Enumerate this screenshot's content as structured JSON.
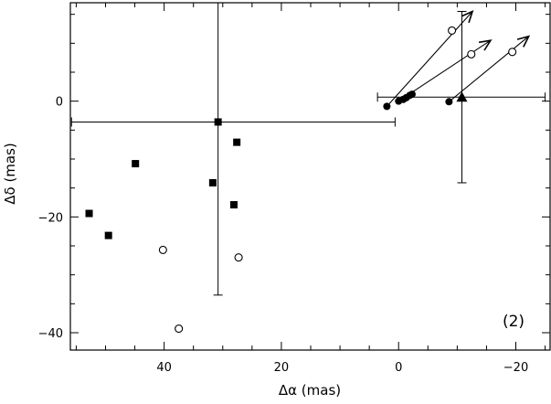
{
  "chart_data": {
    "type": "scatter",
    "xlabel": "Δα  (mas)",
    "ylabel": "Δδ  (mas)",
    "xlim": [
      56,
      -26
    ],
    "ylim": [
      -43,
      17
    ],
    "x_reversed": true,
    "grid": false,
    "x_ticks": [
      40,
      20,
      0,
      -20
    ],
    "x_tick_labels": [
      "40",
      "20",
      "0",
      "−20"
    ],
    "y_ticks": [
      0,
      -20,
      -40
    ],
    "y_tick_labels": [
      "0",
      "−20",
      "−40"
    ],
    "annotation": "(2)",
    "series": [
      {
        "marker": "filled-square",
        "points": [
          [
            52.8,
            -19.4
          ],
          [
            49.5,
            -23.2
          ],
          [
            44.9,
            -10.8
          ],
          [
            31.7,
            -14.1
          ],
          [
            28.1,
            -17.9
          ],
          [
            27.6,
            -7.1
          ],
          [
            30.8,
            -3.6
          ]
        ]
      },
      {
        "marker": "open-circle",
        "points": [
          [
            40.2,
            -25.7
          ],
          [
            37.5,
            -39.3
          ],
          [
            27.3,
            -27.0
          ],
          [
            -9.1,
            12.2
          ],
          [
            -12.4,
            8.1
          ],
          [
            -19.4,
            8.5
          ]
        ]
      },
      {
        "marker": "filled-circle",
        "points": [
          [
            2.0,
            -0.9
          ],
          [
            0.0,
            0.0
          ],
          [
            -0.8,
            0.3
          ],
          [
            -1.3,
            0.6
          ],
          [
            -1.9,
            1.0
          ],
          [
            -2.3,
            1.2
          ],
          [
            -8.6,
            -0.1
          ]
        ]
      },
      {
        "marker": "filled-triangle",
        "points": [
          [
            -10.8,
            0.7
          ]
        ]
      }
    ],
    "error_bars": [
      {
        "x": 30.8,
        "y": -3.6,
        "x_range": [
          55.8,
          0.6
        ],
        "y_range": [
          -33.5,
          17.0
        ]
      },
      {
        "x": -10.8,
        "y": 0.7,
        "x_range": [
          3.6,
          -25.0
        ],
        "y_range": [
          -14.1,
          15.5
        ]
      }
    ],
    "vectors": [
      {
        "from": [
          2.0,
          -0.9
        ],
        "to": [
          -12.6,
          15.5
        ]
      },
      {
        "from": [
          0.0,
          0.0
        ],
        "to": [
          -15.7,
          10.5
        ]
      },
      {
        "from": [
          -8.6,
          -0.1
        ],
        "to": [
          -22.2,
          11.2
        ]
      }
    ]
  }
}
